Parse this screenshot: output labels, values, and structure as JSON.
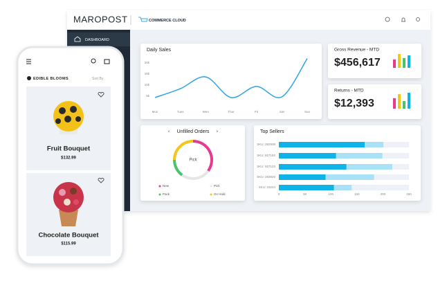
{
  "header": {
    "logo": "MAROPOST",
    "product": "COMMERCE CLOUD"
  },
  "sidebar": {
    "items": [
      "DASHBOARD"
    ]
  },
  "kpis": [
    {
      "title": "Gross Revenue - MTD",
      "value": "$456,617"
    },
    {
      "title": "Returns - MTD",
      "value": "$12,393"
    }
  ],
  "phone": {
    "brand": "EDIBLE BLOOMS",
    "sort": "Sort By",
    "products": [
      {
        "name": "Fruit Bouquet",
        "price": "$132.99"
      },
      {
        "name": "Chocolate Bouquet",
        "price": "$115.99"
      }
    ]
  },
  "chart_data": [
    {
      "type": "line",
      "title": "Daily Sales",
      "categories": [
        "Mon",
        "Tues",
        "Wen",
        "Thur",
        "Fri",
        "Sat",
        "Sun"
      ],
      "values": [
        4400,
        8400,
        13700,
        4400,
        9400,
        4700,
        22000
      ],
      "color": "#3aa8e0",
      "ylim": [
        0,
        22500
      ],
      "yticks": [
        {
          "value": 5000,
          "label": "5k"
        },
        {
          "value": 10000,
          "label": "10k"
        },
        {
          "value": 15000,
          "label": "15k"
        },
        {
          "value": 20000,
          "label": "20k"
        }
      ]
    },
    {
      "type": "pie",
      "title": "Unfilled Orders",
      "center_label": "Pick",
      "categories": [
        "New",
        "Pick",
        "Pack",
        "On Hold"
      ],
      "values": [
        35,
        25,
        15,
        25
      ],
      "colors": [
        "#e8388f",
        "#e6e6e6",
        "#4cc36b",
        "#f5c518"
      ]
    },
    {
      "type": "bar",
      "orientation": "horizontal",
      "stacked": true,
      "title": "Top Sellers",
      "categories": [
        "SKU: 282938",
        "SKU: 827192",
        "SKU: 927123",
        "SKU: 283920",
        "SKU: 23244"
      ],
      "series": [
        {
          "color": "#10b3e8",
          "values": [
            165,
            110,
            130,
            90,
            106
          ]
        },
        {
          "color": "#a9e2f6",
          "values": [
            36,
            89,
            88,
            93,
            34
          ]
        }
      ],
      "xlim": [
        0,
        250
      ],
      "xticks": [
        0,
        50,
        100,
        150,
        200,
        250
      ]
    }
  ]
}
